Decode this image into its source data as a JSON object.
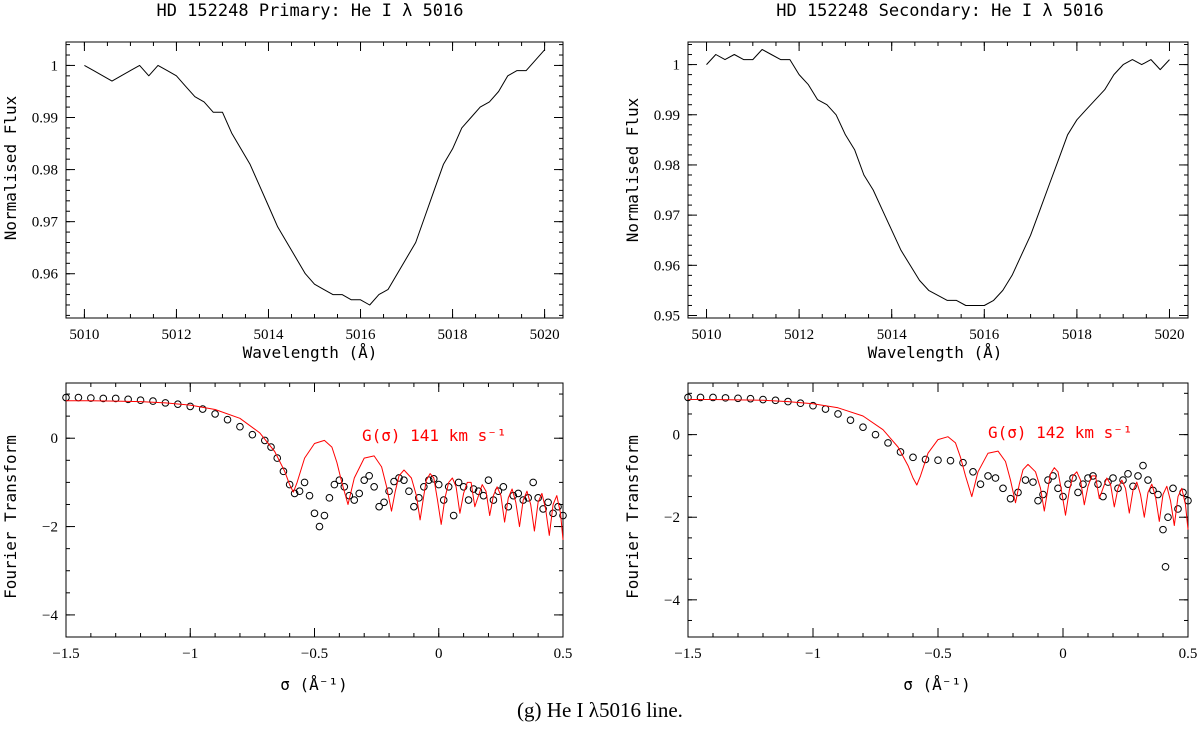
{
  "caption": "(g) He I λ5016 line.",
  "chart_data": [
    {
      "id": "primary_spectrum",
      "type": "line",
      "title": "HD 152248 Primary: He I λ 5016",
      "xlabel": "Wavelength (Å)",
      "ylabel": "Normalised Flux",
      "xlim": [
        5009.6,
        5020.4
      ],
      "ylim": [
        0.9515,
        1.0045
      ],
      "xticks": [
        5010,
        5012,
        5014,
        5016,
        5018,
        5020
      ],
      "xtick_labels": [
        "5010",
        "5012",
        "5014",
        "5016",
        "5018",
        "5020"
      ],
      "yticks": [
        0.96,
        0.97,
        0.98,
        0.99,
        1.0
      ],
      "ytick_labels": [
        "0.96",
        "0.97",
        "0.98",
        "0.99",
        "1"
      ],
      "series": [
        {
          "name": "spectrum",
          "color": "#000000",
          "x": [
            5010.0,
            5010.2,
            5010.4,
            5010.6,
            5010.8,
            5011.0,
            5011.2,
            5011.4,
            5011.6,
            5011.8,
            5012.0,
            5012.2,
            5012.4,
            5012.6,
            5012.8,
            5013.0,
            5013.2,
            5013.4,
            5013.6,
            5013.8,
            5014.0,
            5014.2,
            5014.4,
            5014.6,
            5014.8,
            5015.0,
            5015.2,
            5015.4,
            5015.6,
            5015.8,
            5016.0,
            5016.2,
            5016.4,
            5016.6,
            5016.8,
            5017.0,
            5017.2,
            5017.4,
            5017.6,
            5017.8,
            5018.0,
            5018.2,
            5018.4,
            5018.6,
            5018.8,
            5019.0,
            5019.2,
            5019.4,
            5019.6,
            5019.8,
            5020.0
          ],
          "y": [
            1.0,
            0.999,
            0.998,
            0.997,
            0.998,
            0.999,
            1.0,
            0.998,
            1.0,
            0.999,
            0.998,
            0.996,
            0.994,
            0.993,
            0.991,
            0.991,
            0.987,
            0.984,
            0.981,
            0.977,
            0.973,
            0.969,
            0.966,
            0.963,
            0.96,
            0.958,
            0.957,
            0.956,
            0.956,
            0.955,
            0.955,
            0.954,
            0.956,
            0.957,
            0.96,
            0.963,
            0.966,
            0.971,
            0.976,
            0.981,
            0.984,
            0.988,
            0.99,
            0.992,
            0.993,
            0.995,
            0.998,
            0.999,
            0.999,
            1.001,
            1.003
          ]
        }
      ]
    },
    {
      "id": "secondary_spectrum",
      "type": "line",
      "title": "HD 152248 Secondary: He I λ 5016",
      "xlabel": "Wavelength (Å)",
      "ylabel": "Normalised Flux",
      "xlim": [
        5009.6,
        5020.4
      ],
      "ylim": [
        0.9495,
        1.0045
      ],
      "xticks": [
        5010,
        5012,
        5014,
        5016,
        5018,
        5020
      ],
      "xtick_labels": [
        "5010",
        "5012",
        "5014",
        "5016",
        "5018",
        "5020"
      ],
      "yticks": [
        0.95,
        0.96,
        0.97,
        0.98,
        0.99,
        1.0
      ],
      "ytick_labels": [
        "0.95",
        "0.96",
        "0.97",
        "0.98",
        "0.99",
        "1"
      ],
      "series": [
        {
          "name": "spectrum",
          "color": "#000000",
          "x": [
            5010.0,
            5010.2,
            5010.4,
            5010.6,
            5010.8,
            5011.0,
            5011.2,
            5011.4,
            5011.6,
            5011.8,
            5012.0,
            5012.2,
            5012.4,
            5012.6,
            5012.8,
            5013.0,
            5013.2,
            5013.4,
            5013.6,
            5013.8,
            5014.0,
            5014.2,
            5014.4,
            5014.6,
            5014.8,
            5015.0,
            5015.2,
            5015.4,
            5015.6,
            5015.8,
            5016.0,
            5016.2,
            5016.4,
            5016.6,
            5016.8,
            5017.0,
            5017.2,
            5017.4,
            5017.6,
            5017.8,
            5018.0,
            5018.2,
            5018.4,
            5018.6,
            5018.8,
            5019.0,
            5019.2,
            5019.4,
            5019.6,
            5019.8,
            5020.0
          ],
          "y": [
            1.0,
            1.002,
            1.001,
            1.002,
            1.001,
            1.001,
            1.003,
            1.002,
            1.001,
            1.001,
            0.998,
            0.996,
            0.993,
            0.992,
            0.99,
            0.986,
            0.983,
            0.978,
            0.975,
            0.971,
            0.967,
            0.963,
            0.96,
            0.957,
            0.955,
            0.954,
            0.953,
            0.953,
            0.952,
            0.952,
            0.952,
            0.953,
            0.955,
            0.958,
            0.962,
            0.966,
            0.971,
            0.976,
            0.981,
            0.986,
            0.989,
            0.991,
            0.993,
            0.995,
            0.998,
            1.0,
            1.001,
            1.0,
            1.001,
            0.999,
            1.001
          ]
        }
      ]
    },
    {
      "id": "primary_fourier",
      "type": "scatter",
      "xlabel": "σ (Å⁻¹)",
      "ylabel": "Fourier Transform",
      "xlim": [
        -1.5,
        0.5
      ],
      "ylim": [
        -4.5,
        1.25
      ],
      "xticks": [
        -1.5,
        -1,
        -0.5,
        0,
        0.5
      ],
      "xtick_labels": [
        "−1.5",
        "−1",
        "−0.5",
        "0",
        "0.5"
      ],
      "yticks": [
        -4,
        -2,
        0
      ],
      "ytick_labels": [
        "−4",
        "−2",
        "0"
      ],
      "annotation": {
        "text": "G(σ) 141 km s⁻¹",
        "color": "#ff0000"
      },
      "series": [
        {
          "name": "observed",
          "marker": "open-circle",
          "x": [
            -1.5,
            -1.45,
            -1.4,
            -1.35,
            -1.3,
            -1.25,
            -1.2,
            -1.15,
            -1.1,
            -1.05,
            -1.0,
            -0.95,
            -0.9,
            -0.85,
            -0.8,
            -0.75,
            -0.7,
            -0.675,
            -0.65,
            -0.625,
            -0.6,
            -0.58,
            -0.56,
            -0.54,
            -0.52,
            -0.5,
            -0.48,
            -0.46,
            -0.44,
            -0.42,
            -0.4,
            -0.38,
            -0.36,
            -0.34,
            -0.32,
            -0.3,
            -0.28,
            -0.26,
            -0.24,
            -0.22,
            -0.2,
            -0.18,
            -0.16,
            -0.14,
            -0.12,
            -0.1,
            -0.08,
            -0.06,
            -0.04,
            -0.02,
            0.0,
            0.02,
            0.04,
            0.06,
            0.08,
            0.1,
            0.12,
            0.14,
            0.16,
            0.18,
            0.2,
            0.22,
            0.24,
            0.26,
            0.28,
            0.3,
            0.32,
            0.34,
            0.36,
            0.38,
            0.4,
            0.42,
            0.44,
            0.46,
            0.48,
            0.5
          ],
          "y": [
            0.92,
            0.92,
            0.91,
            0.9,
            0.9,
            0.88,
            0.86,
            0.84,
            0.8,
            0.77,
            0.72,
            0.66,
            0.55,
            0.42,
            0.26,
            0.08,
            -0.05,
            -0.2,
            -0.45,
            -0.75,
            -1.05,
            -1.25,
            -1.2,
            -1.0,
            -1.3,
            -1.7,
            -2.0,
            -1.75,
            -1.35,
            -1.05,
            -0.95,
            -1.1,
            -1.3,
            -1.4,
            -1.25,
            -0.95,
            -0.85,
            -1.1,
            -1.55,
            -1.45,
            -1.2,
            -0.98,
            -0.9,
            -0.95,
            -1.2,
            -1.55,
            -1.35,
            -1.1,
            -0.95,
            -0.92,
            -1.05,
            -1.4,
            -1.1,
            -1.75,
            -1.0,
            -1.1,
            -1.4,
            -1.15,
            -1.2,
            -1.3,
            -0.95,
            -1.4,
            -1.2,
            -1.1,
            -1.55,
            -1.3,
            -1.25,
            -1.4,
            -1.35,
            -1.0,
            -1.35,
            -1.6,
            -1.45,
            -1.7,
            -1.55,
            -1.75
          ]
        },
        {
          "name": "G(σ) 141 km s⁻¹",
          "color": "#ff0000",
          "x": [
            -1.5,
            -1.4,
            -1.3,
            -1.2,
            -1.1,
            -1.0,
            -0.9,
            -0.8,
            -0.72,
            -0.66,
            -0.62,
            -0.6,
            -0.585,
            -0.57,
            -0.54,
            -0.5,
            -0.46,
            -0.43,
            -0.41,
            -0.39,
            -0.365,
            -0.34,
            -0.3,
            -0.26,
            -0.23,
            -0.21,
            -0.19,
            -0.175,
            -0.16,
            -0.14,
            -0.11,
            -0.09,
            -0.075,
            -0.06,
            -0.05,
            -0.035,
            -0.02,
            -0.005,
            0.01,
            0.025,
            0.04,
            0.055,
            0.07,
            0.085,
            0.1,
            0.115,
            0.13,
            0.145,
            0.16,
            0.175,
            0.19,
            0.205,
            0.22,
            0.235,
            0.25,
            0.265,
            0.28,
            0.295,
            0.31,
            0.325,
            0.34,
            0.355,
            0.37,
            0.385,
            0.4,
            0.415,
            0.43,
            0.445,
            0.46,
            0.475,
            0.49,
            0.5
          ],
          "y": [
            0.85,
            0.85,
            0.84,
            0.83,
            0.8,
            0.75,
            0.65,
            0.45,
            0.12,
            -0.3,
            -0.75,
            -1.05,
            -1.22,
            -1.0,
            -0.45,
            -0.12,
            -0.05,
            -0.2,
            -0.55,
            -1.0,
            -1.5,
            -0.9,
            -0.45,
            -0.4,
            -0.65,
            -1.1,
            -1.65,
            -1.2,
            -0.85,
            -0.72,
            -0.9,
            -1.3,
            -1.85,
            -1.3,
            -0.95,
            -0.8,
            -0.9,
            -1.4,
            -1.95,
            -1.35,
            -1.0,
            -0.9,
            -1.1,
            -1.7,
            -1.25,
            -1.0,
            -1.0,
            -1.55,
            -1.3,
            -1.05,
            -1.2,
            -1.75,
            -1.3,
            -1.1,
            -1.3,
            -1.9,
            -1.35,
            -1.15,
            -1.45,
            -2.0,
            -1.4,
            -1.2,
            -1.5,
            -2.1,
            -1.45,
            -1.25,
            -1.6,
            -2.2,
            -1.5,
            -1.3,
            -1.7,
            -2.3
          ]
        }
      ]
    },
    {
      "id": "secondary_fourier",
      "type": "scatter",
      "xlabel": "σ (Å⁻¹)",
      "ylabel": "Fourier Transform",
      "xlim": [
        -1.5,
        0.5
      ],
      "ylim": [
        -4.9,
        1.25
      ],
      "xticks": [
        -1.5,
        -1,
        -0.5,
        0,
        0.5
      ],
      "xtick_labels": [
        "−1.5",
        "−1",
        "−0.5",
        "0",
        "0.5"
      ],
      "yticks": [
        -4,
        -2,
        0
      ],
      "ytick_labels": [
        "−4",
        "−2",
        "0"
      ],
      "annotation": {
        "text": "G(σ) 142 km s⁻¹",
        "color": "#ff0000"
      },
      "series": [
        {
          "name": "observed",
          "marker": "open-circle",
          "x": [
            -1.5,
            -1.45,
            -1.4,
            -1.35,
            -1.3,
            -1.25,
            -1.2,
            -1.15,
            -1.1,
            -1.05,
            -1.0,
            -0.95,
            -0.9,
            -0.85,
            -0.8,
            -0.75,
            -0.7,
            -0.65,
            -0.6,
            -0.55,
            -0.5,
            -0.45,
            -0.4,
            -0.36,
            -0.33,
            -0.3,
            -0.27,
            -0.24,
            -0.21,
            -0.18,
            -0.15,
            -0.12,
            -0.1,
            -0.08,
            -0.06,
            -0.04,
            -0.02,
            0.0,
            0.02,
            0.04,
            0.06,
            0.08,
            0.1,
            0.12,
            0.14,
            0.16,
            0.18,
            0.2,
            0.22,
            0.24,
            0.26,
            0.28,
            0.3,
            0.32,
            0.34,
            0.36,
            0.38,
            0.4,
            0.41,
            0.42,
            0.44,
            0.46,
            0.48,
            0.5
          ],
          "y": [
            0.9,
            0.9,
            0.9,
            0.89,
            0.88,
            0.87,
            0.85,
            0.83,
            0.8,
            0.76,
            0.7,
            0.62,
            0.5,
            0.35,
            0.18,
            0.0,
            -0.2,
            -0.42,
            -0.55,
            -0.6,
            -0.62,
            -0.63,
            -0.68,
            -0.9,
            -1.2,
            -1.0,
            -1.05,
            -1.3,
            -1.55,
            -1.4,
            -1.1,
            -1.15,
            -1.6,
            -1.45,
            -1.1,
            -1.0,
            -1.3,
            -1.5,
            -1.2,
            -1.05,
            -1.4,
            -1.2,
            -1.05,
            -1.0,
            -1.2,
            -1.5,
            -1.15,
            -1.05,
            -1.3,
            -1.1,
            -0.95,
            -1.25,
            -1.0,
            -0.75,
            -1.1,
            -1.35,
            -1.45,
            -2.3,
            -3.2,
            -2.0,
            -1.3,
            -1.8,
            -1.4,
            -1.6
          ]
        },
        {
          "name": "G(σ) 142 km s⁻¹",
          "color": "#ff0000",
          "x": [
            -1.5,
            -1.4,
            -1.3,
            -1.2,
            -1.1,
            -1.0,
            -0.9,
            -0.8,
            -0.72,
            -0.66,
            -0.62,
            -0.6,
            -0.585,
            -0.57,
            -0.54,
            -0.5,
            -0.46,
            -0.43,
            -0.41,
            -0.39,
            -0.365,
            -0.34,
            -0.3,
            -0.26,
            -0.23,
            -0.21,
            -0.19,
            -0.175,
            -0.16,
            -0.14,
            -0.11,
            -0.09,
            -0.075,
            -0.06,
            -0.05,
            -0.035,
            -0.02,
            -0.005,
            0.01,
            0.025,
            0.04,
            0.055,
            0.07,
            0.085,
            0.1,
            0.115,
            0.13,
            0.145,
            0.16,
            0.175,
            0.19,
            0.205,
            0.22,
            0.235,
            0.25,
            0.265,
            0.28,
            0.295,
            0.31,
            0.325,
            0.34,
            0.355,
            0.37,
            0.385,
            0.4,
            0.415,
            0.43,
            0.445,
            0.46,
            0.475,
            0.49,
            0.5
          ],
          "y": [
            0.85,
            0.85,
            0.84,
            0.83,
            0.8,
            0.75,
            0.65,
            0.45,
            0.12,
            -0.3,
            -0.75,
            -1.05,
            -1.22,
            -1.0,
            -0.45,
            -0.12,
            -0.05,
            -0.2,
            -0.55,
            -1.0,
            -1.5,
            -0.9,
            -0.45,
            -0.4,
            -0.65,
            -1.1,
            -1.65,
            -1.2,
            -0.85,
            -0.72,
            -0.9,
            -1.3,
            -1.85,
            -1.3,
            -0.95,
            -0.8,
            -0.9,
            -1.4,
            -1.95,
            -1.35,
            -1.0,
            -0.9,
            -1.1,
            -1.7,
            -1.25,
            -1.0,
            -1.0,
            -1.55,
            -1.3,
            -1.05,
            -1.2,
            -1.75,
            -1.3,
            -1.1,
            -1.3,
            -1.9,
            -1.35,
            -1.15,
            -1.45,
            -2.0,
            -1.4,
            -1.2,
            -1.5,
            -2.1,
            -1.45,
            -1.25,
            -1.6,
            -2.2,
            -1.5,
            -1.3,
            -1.7,
            -2.3
          ]
        }
      ]
    }
  ]
}
